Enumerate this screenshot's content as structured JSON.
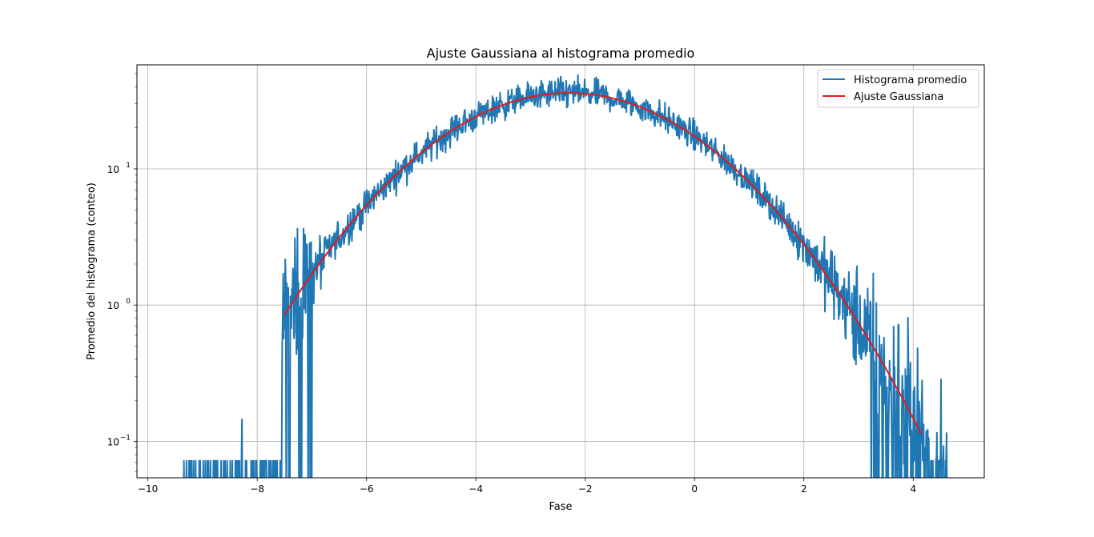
{
  "chart_data": {
    "type": "line",
    "title": "Ajuste Gaussiana al histograma promedio",
    "xlabel": "Fase",
    "ylabel": "Promedio del histograma (conteo)",
    "xlim": [
      -10.2,
      5.3
    ],
    "ylim": [
      0.054,
      58
    ],
    "yscale": "log",
    "grid": true,
    "legend_position": "top-right",
    "x_ticks": [
      -10,
      -8,
      -6,
      -4,
      -2,
      0,
      2,
      4
    ],
    "x_tick_labels": [
      "−10",
      "−8",
      "−6",
      "−4",
      "−2",
      "0",
      "2",
      "4"
    ],
    "y_ticks": [
      0.1,
      1,
      10
    ],
    "y_tick_labels": [
      {
        "base": "10",
        "exp": "−1"
      },
      {
        "base": "10",
        "exp": "0"
      },
      {
        "base": "10",
        "exp": "1"
      }
    ],
    "series": [
      {
        "name": "Histograma promedio",
        "color": "#1f77b4",
        "noisy_histogram": true,
        "x_range": [
          -9.35,
          4.62
        ],
        "gaussian_peak": 36,
        "gaussian_mean": -2.3,
        "gaussian_sigma": 1.9,
        "sparse_tail_left": [
          -9.35,
          -7.5
        ],
        "sparse_tail_right": [
          3.4,
          4.62
        ],
        "tail_level": 0.072,
        "tail_spike": [
          -8.28,
          0.145
        ]
      },
      {
        "name": "Ajuste Gaussiana",
        "color": "#e31a1c",
        "function": "gaussian",
        "amplitude": 36,
        "mean": -2.3,
        "sigma": 1.9,
        "x_range": [
          -7.5,
          4.15
        ]
      }
    ]
  }
}
